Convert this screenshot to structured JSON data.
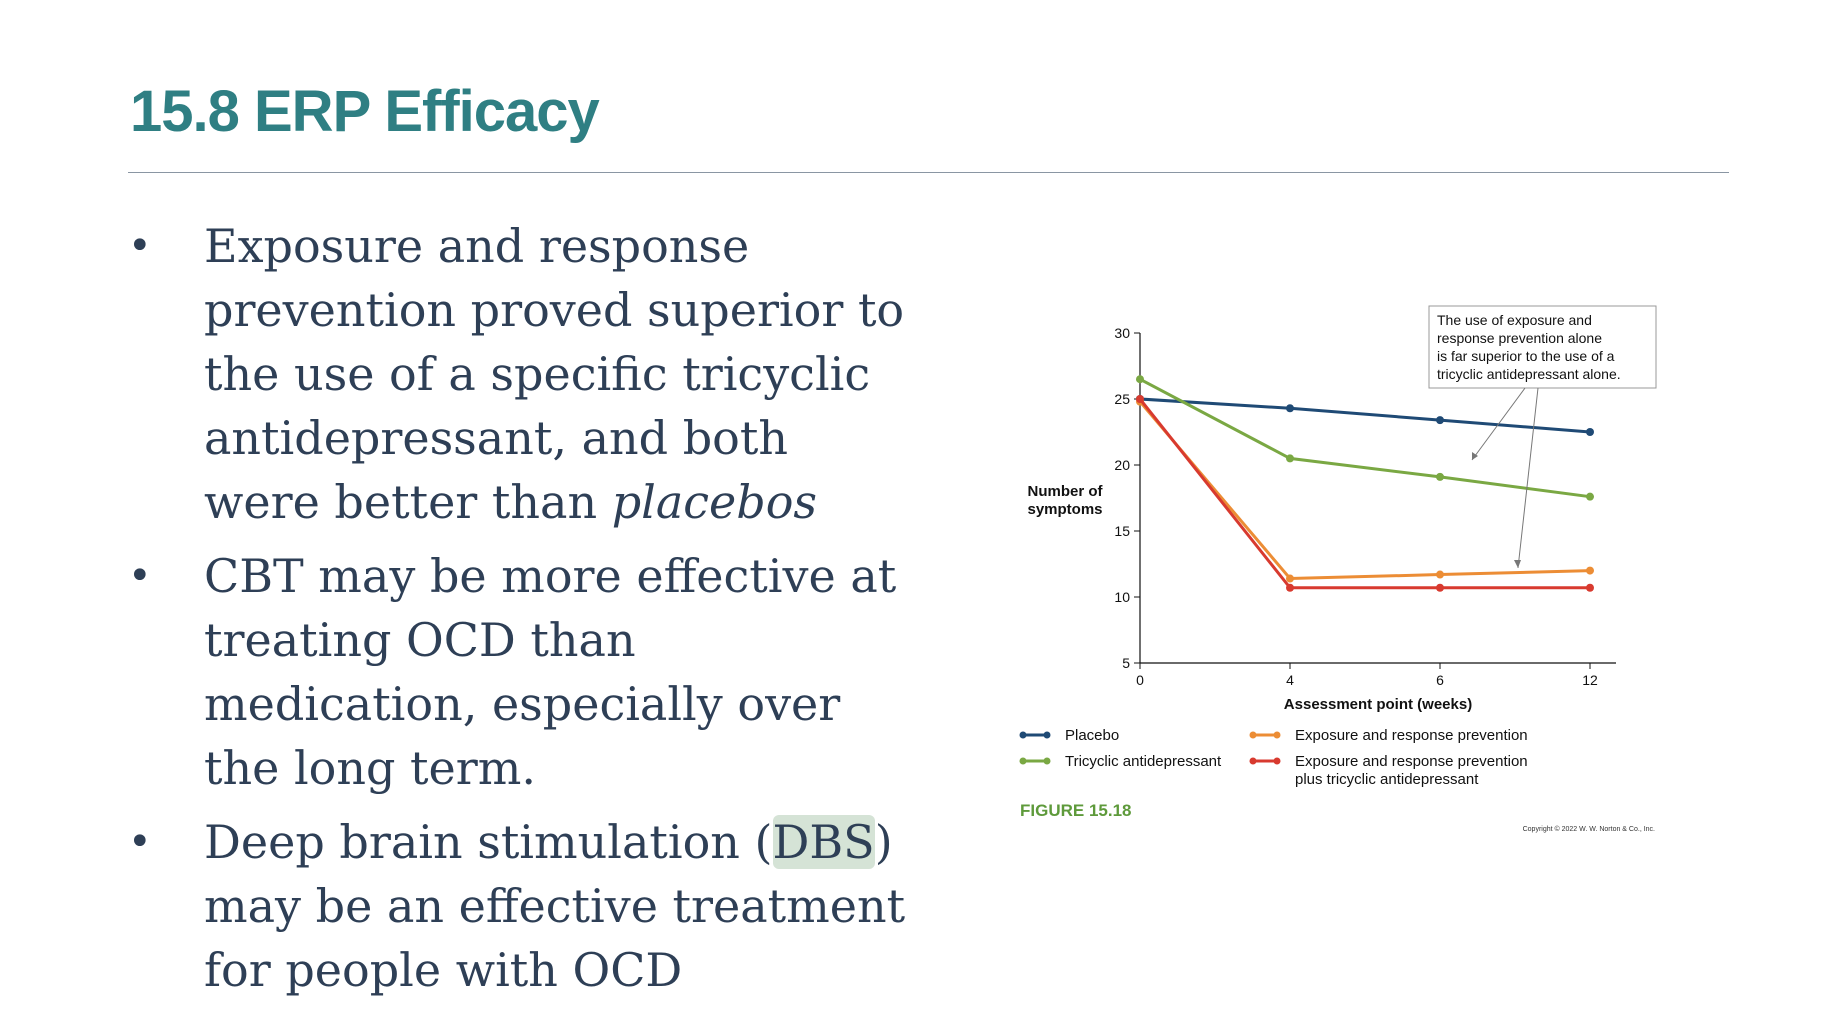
{
  "slide": {
    "title": "15.8 ERP Efficacy",
    "bullets": [
      {
        "text": "Exposure and response prevention proved superior to the use of a specific tricyclic antidepressant, and both were better than ",
        "emph": "placebos"
      },
      {
        "text": "CBT may be more effective at treating OCD than medication, especially over the long term."
      },
      {
        "pre": "Deep brain stimulation (",
        "highlight": "DBS",
        "post": ") may be an effective treatment for people with OCD"
      }
    ]
  },
  "chart_data": {
    "type": "line",
    "categories": [
      "0",
      "4",
      "6",
      "12"
    ],
    "ylabel": "Number of symptoms",
    "xlabel": "Assessment point (weeks)",
    "ylim": [
      5,
      30
    ],
    "yticks": [
      5,
      10,
      15,
      20,
      25,
      30
    ],
    "series": [
      {
        "name": "Placebo",
        "color": "#1f4a75",
        "values": [
          25.0,
          24.3,
          23.4,
          22.5
        ]
      },
      {
        "name": "Tricyclic antidepressant",
        "color": "#7aa843",
        "values": [
          26.5,
          20.5,
          19.1,
          17.6
        ]
      },
      {
        "name": "Exposure and response prevention",
        "color": "#ec8d35",
        "values": [
          24.8,
          11.4,
          11.7,
          12.0
        ]
      },
      {
        "name": "Exposure and response prevention plus tricyclic antidepressant",
        "color": "#d83a2f",
        "values": [
          25.0,
          10.7,
          10.7,
          10.7
        ]
      }
    ],
    "legend": [
      {
        "label": "Placebo",
        "color": "#1f4a75"
      },
      {
        "label": "Tricyclic antidepressant",
        "color": "#7aa843"
      },
      {
        "label": "Exposure and response prevention",
        "color": "#ec8d35"
      },
      {
        "label_line1": "Exposure and response prevention",
        "label_line2": "plus tricyclic antidepressant",
        "color": "#d83a2f"
      }
    ],
    "annotation": [
      "The use of exposure and",
      "response prevention alone",
      "is far superior to the use of a",
      "tricyclic antidepressant alone."
    ],
    "figure_label": "FIGURE 15.18",
    "copyright": "Copyright © 2022 W. W. Norton & Co., Inc."
  }
}
